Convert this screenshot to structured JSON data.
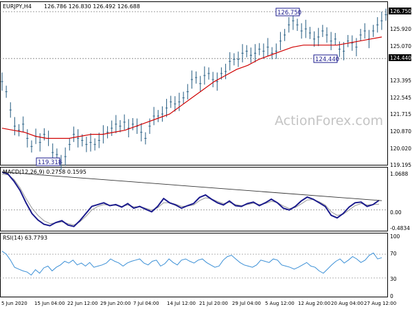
{
  "chart_data": [
    {
      "type": "candlestick",
      "symbol_header": "EURJPY,H4",
      "ohlc_header": "126.786 126.830 126.492 126.688",
      "ylim": [
        119.195,
        126.95
      ],
      "y_ticks": [
        "126.750",
        "125.920",
        "125.070",
        "124.440",
        "123.395",
        "122.545",
        "121.715",
        "120.870",
        "120.020",
        "119.195"
      ],
      "price_series": [
        123.3,
        122.8,
        121.9,
        121.1,
        120.9,
        121.2,
        120.5,
        120.1,
        120.6,
        120.3,
        120.7,
        120.5,
        119.8,
        119.7,
        119.3,
        119.6,
        120.2,
        120.7,
        120.5,
        120.4,
        120.2,
        120.3,
        120.2,
        120.4,
        120.7,
        120.8,
        121.0,
        121.2,
        121.1,
        121.3,
        121.0,
        121.2,
        121.1,
        120.8,
        120.5,
        121.1,
        121.6,
        121.6,
        121.7,
        122.0,
        122.3,
        122.2,
        122.3,
        122.5,
        122.8,
        123.4,
        123.5,
        123.2,
        123.6,
        123.7,
        123.4,
        123.3,
        123.7,
        123.8,
        124.3,
        124.4,
        124.4,
        124.7,
        124.8,
        124.6,
        124.7,
        124.9,
        124.8,
        125.0,
        124.7,
        124.8,
        125.3,
        125.6,
        126.1,
        126.3,
        126.1,
        125.8,
        125.9,
        125.7,
        125.4,
        125.5,
        125.8,
        125.6,
        125.3,
        125.4,
        124.9,
        124.8,
        125.3,
        125.2,
        125.0,
        125.6,
        125.8,
        125.4,
        125.8,
        126.1,
        126.3,
        126.6
      ],
      "ma_series": [
        121.0,
        120.9,
        120.8,
        120.6,
        120.5,
        120.5,
        120.5,
        120.6,
        120.7,
        120.7,
        120.8,
        120.9,
        121.1,
        121.3,
        121.5,
        121.7,
        122.1,
        122.5,
        122.9,
        123.3,
        123.6,
        123.9,
        124.1,
        124.4,
        124.6,
        124.8,
        125.0,
        125.1,
        125.1,
        125.1,
        125.1,
        125.2,
        125.3,
        125.4,
        125.5
      ],
      "annotations": [
        {
          "label": "126.750",
          "value": 126.75
        },
        {
          "label": "124.440",
          "value": 124.44
        },
        {
          "label": "119.318",
          "value": 119.318
        }
      ],
      "watermark": "ActionForex.com",
      "colors": {
        "price": "#36698c",
        "ma": "#d00000",
        "grid": "#7f7f7f"
      }
    },
    {
      "type": "line",
      "header": "MACD(12,26,9) 0.2758 0.1595",
      "ylim": [
        -0.48,
        1.05
      ],
      "y_ticks": [
        "1.0688",
        "0.00",
        "-0.4834"
      ],
      "macd": [
        1.06,
        1.0,
        0.8,
        0.55,
        0.2,
        -0.1,
        -0.28,
        -0.4,
        -0.44,
        -0.35,
        -0.3,
        -0.42,
        -0.46,
        -0.3,
        -0.1,
        0.1,
        0.15,
        0.2,
        0.12,
        0.15,
        0.08,
        0.18,
        0.05,
        0.1,
        0.02,
        -0.05,
        0.1,
        0.32,
        0.2,
        0.14,
        0.05,
        0.12,
        0.18,
        0.35,
        0.42,
        0.3,
        0.2,
        0.14,
        0.25,
        0.12,
        0.1,
        0.18,
        0.22,
        0.12,
        0.2,
        0.3,
        0.2,
        0.05,
        0.0,
        0.1,
        0.25,
        0.36,
        0.3,
        0.2,
        0.1,
        -0.15,
        -0.22,
        -0.1,
        0.08,
        0.2,
        0.22,
        0.1,
        0.15,
        0.27
      ],
      "signal": [
        1.0,
        0.98,
        0.85,
        0.62,
        0.32,
        0.05,
        -0.15,
        -0.3,
        -0.38,
        -0.36,
        -0.33,
        -0.38,
        -0.42,
        -0.33,
        -0.18,
        0.0,
        0.1,
        0.15,
        0.13,
        0.13,
        0.1,
        0.14,
        0.09,
        0.09,
        0.05,
        0.0,
        0.06,
        0.2,
        0.2,
        0.16,
        0.1,
        0.11,
        0.14,
        0.26,
        0.34,
        0.31,
        0.24,
        0.18,
        0.21,
        0.15,
        0.12,
        0.15,
        0.19,
        0.15,
        0.18,
        0.24,
        0.21,
        0.11,
        0.04,
        0.07,
        0.17,
        0.28,
        0.29,
        0.23,
        0.14,
        -0.05,
        -0.15,
        -0.12,
        0.0,
        0.12,
        0.18,
        0.14,
        0.15,
        0.16
      ],
      "trendline": [
        1.06,
        0.26
      ],
      "colors": {
        "macd": "#1a1a8c",
        "signal": "#999999",
        "trendline": "#333333"
      }
    },
    {
      "type": "line",
      "header": "RSI(14) 63.7793",
      "ylim": [
        0,
        100
      ],
      "y_ticks": [
        "100",
        "70",
        "30",
        "0"
      ],
      "rsi": [
        75,
        70,
        60,
        48,
        45,
        42,
        40,
        35,
        44,
        38,
        47,
        50,
        42,
        48,
        52,
        58,
        55,
        60,
        52,
        55,
        50,
        56,
        48,
        50,
        52,
        55,
        62,
        58,
        55,
        50,
        55,
        58,
        60,
        62,
        55,
        52,
        58,
        60,
        50,
        54,
        62,
        56,
        52,
        60,
        62,
        58,
        55,
        60,
        62,
        56,
        52,
        48,
        50,
        60,
        66,
        68,
        62,
        56,
        52,
        50,
        48,
        52,
        60,
        58,
        56,
        62,
        60,
        52,
        50,
        48,
        45,
        48,
        52,
        56,
        50,
        48,
        42,
        38,
        45,
        52,
        58,
        62,
        55,
        60,
        66,
        62,
        56,
        60,
        68,
        72,
        62,
        64
      ],
      "levels": [
        70,
        30
      ],
      "color": "#3a8fd6"
    }
  ],
  "x_ticks": [
    "5 Jun 2020",
    "15 Jun 04:00",
    "22 Jun 12:00",
    "29 Jun 20:00",
    "7 Jul 04:00",
    "14 Jul 12:00",
    "21 Jul 20:00",
    "29 Jul 04:00",
    "5 Aug 12:00",
    "12 Aug 20:00",
    "20 Aug 04:00",
    "27 Aug 12:00"
  ]
}
